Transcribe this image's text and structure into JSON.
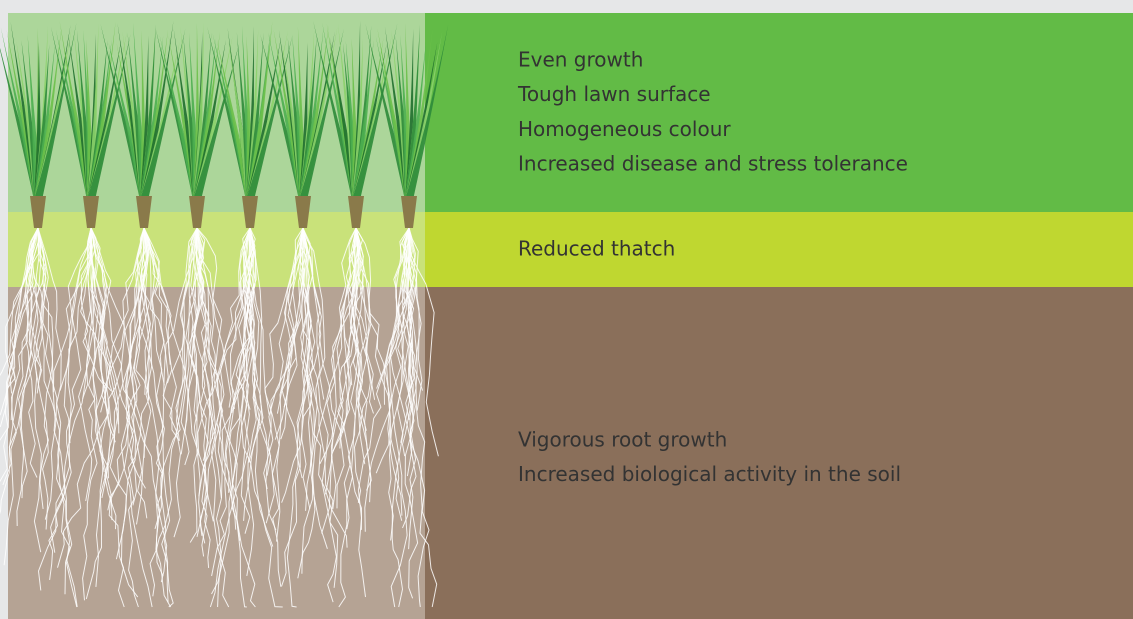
{
  "sections": [
    {
      "lines": [
        "Even growth",
        "Tough lawn surface",
        "Homogeneous colour",
        "Increased disease and stress tolerance"
      ]
    },
    {
      "lines": [
        "Reduced thatch"
      ]
    },
    {
      "lines": [
        "Vigorous root growth",
        "Increased biological activity in the soil"
      ]
    }
  ]
}
